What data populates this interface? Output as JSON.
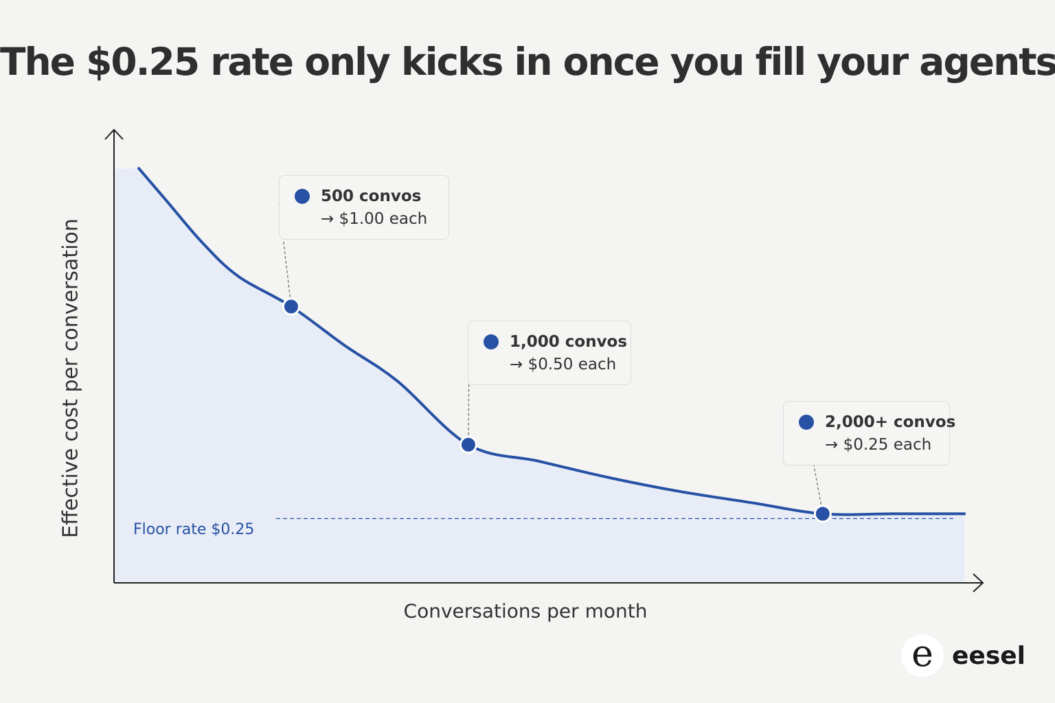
{
  "chart_data": {
    "type": "area",
    "title": "The $0.25 rate only kicks in once you fill your agents",
    "xlabel": "Conversations per month",
    "ylabel": "Effective cost per conversation",
    "x": [
      70,
      150,
      250,
      350,
      500,
      650,
      800,
      1000,
      1200,
      1400,
      1600,
      1800,
      2000,
      2200,
      2400
    ],
    "y": [
      1.5,
      1.38,
      1.23,
      1.11,
      1.0,
      0.86,
      0.73,
      0.5,
      0.44,
      0.38,
      0.33,
      0.29,
      0.25,
      0.25,
      0.25
    ],
    "xlim": [
      0,
      2450
    ],
    "ylim": [
      0,
      1.6
    ],
    "grid": false,
    "legend": "none",
    "highlight_points": [
      {
        "x": 500,
        "y": 1.0,
        "label": "500 convos",
        "detail": "→ $1.00 each"
      },
      {
        "x": 1000,
        "y": 0.5,
        "label": "1,000 convos",
        "detail": "→ $0.50 each"
      },
      {
        "x": 2000,
        "y": 0.25,
        "label": "2,000+ convos",
        "detail": "→ $0.25 each"
      }
    ],
    "reference_line": {
      "y": 0.25,
      "label": "Floor rate $0.25",
      "style": "dashed"
    },
    "colors": {
      "line": "#2651a4",
      "fill": "#e8ecf6",
      "reference": "#2651a4",
      "connector": "#777777"
    }
  },
  "brand": {
    "name": "eesel",
    "mark": "e"
  }
}
